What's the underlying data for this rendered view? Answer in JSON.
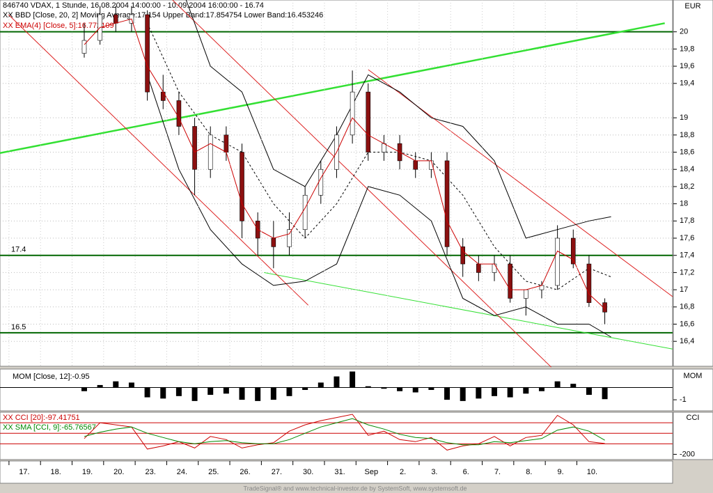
{
  "chart_data": [
    {
      "type": "candlestick",
      "title": "846740 VDAX, 1 Stunde, 16.08.2004 14:00:00 - 10.09.2004 16:00:00 - 16.74",
      "axis_label": "EUR",
      "xlim": [
        -0.77,
        20.55
      ],
      "ylim": [
        16.11,
        20.37
      ],
      "yticks": [
        20,
        {
          "value": 19.8,
          "label": "19,8"
        },
        {
          "value": 19.6,
          "label": "19,6"
        },
        {
          "value": 19.4,
          "label": "19,4"
        },
        19,
        {
          "value": 18.8,
          "label": "18,8"
        },
        {
          "value": 18.6,
          "label": "18,6"
        },
        {
          "value": 18.4,
          "label": "18,4"
        },
        {
          "value": 18.2,
          "label": "18,2"
        },
        18,
        {
          "value": 17.8,
          "label": "17,8"
        },
        {
          "value": 17.6,
          "label": "17,6"
        },
        {
          "value": 17.4,
          "label": "17,4"
        },
        {
          "value": 17.2,
          "label": "17,2"
        },
        17,
        {
          "value": 16.8,
          "label": "16,8"
        },
        {
          "value": 16.6,
          "label": "16,6"
        },
        {
          "value": 16.4,
          "label": "16,4"
        }
      ],
      "grid": true,
      "up_color": "#ffffff",
      "down_color": "#8b1010",
      "x": [
        1.9,
        2.4,
        2.9,
        3.4,
        3.9,
        4.4,
        4.9,
        5.4,
        5.9,
        6.4,
        6.9,
        7.4,
        7.9,
        8.4,
        8.9,
        9.4,
        9.9,
        10.4,
        10.9,
        11.4,
        11.9,
        12.4,
        12.9,
        13.4,
        13.9,
        14.4,
        14.9,
        15.4,
        15.9,
        16.4,
        16.9,
        17.4,
        17.9,
        18.4
      ],
      "open": [
        19.75,
        19.9,
        20.2,
        20.1,
        20.2,
        19.3,
        19.2,
        18.9,
        18.4,
        18.8,
        18.6,
        17.8,
        17.6,
        17.5,
        17.7,
        18.1,
        18.4,
        18.8,
        19.3,
        18.6,
        18.7,
        18.5,
        18.4,
        18.5,
        17.5,
        17.3,
        17.2,
        17.3,
        16.9,
        17.0,
        17.05,
        17.6,
        17.3,
        16.85
      ],
      "high": [
        20.1,
        20.3,
        20.3,
        20.3,
        20.25,
        19.5,
        19.3,
        19.0,
        18.9,
        18.9,
        18.7,
        17.9,
        17.8,
        17.9,
        18.2,
        18.5,
        18.9,
        19.55,
        19.4,
        18.8,
        18.8,
        18.6,
        18.6,
        18.6,
        17.6,
        17.4,
        17.4,
        17.4,
        17.0,
        17.1,
        17.75,
        17.7,
        17.4,
        16.9
      ],
      "low": [
        19.7,
        19.85,
        20.0,
        20.0,
        19.2,
        19.1,
        18.8,
        18.1,
        18.3,
        18.5,
        17.6,
        17.4,
        17.25,
        17.4,
        17.6,
        18.0,
        18.3,
        18.7,
        18.5,
        18.5,
        18.4,
        18.3,
        18.3,
        17.4,
        17.15,
        17.1,
        17.1,
        16.85,
        16.7,
        16.9,
        17.0,
        17.25,
        16.8,
        16.6
      ],
      "close": [
        19.9,
        20.2,
        20.1,
        20.2,
        19.3,
        19.2,
        18.9,
        18.4,
        18.8,
        18.6,
        17.8,
        17.6,
        17.5,
        17.7,
        18.1,
        18.4,
        18.8,
        19.3,
        18.6,
        18.7,
        18.5,
        18.4,
        18.5,
        17.5,
        17.3,
        17.2,
        17.3,
        16.9,
        17.0,
        17.05,
        17.6,
        17.3,
        16.85,
        16.74
      ],
      "bands": {
        "name": "XX BBD [Close, 20, 2] Moving Average:17.154 Upper Band:17.854754 Lower Band:16.453246",
        "color": "#000000",
        "x": [
          3.9,
          4.9,
          5.9,
          6.9,
          7.9,
          8.9,
          9.9,
          10.9,
          11.9,
          12.9,
          13.9,
          14.9,
          15.9,
          16.9,
          17.9,
          18.6
        ],
        "middle": [
          20.1,
          19.3,
          18.8,
          18.6,
          18.0,
          17.6,
          18.0,
          18.6,
          18.6,
          18.5,
          18.1,
          17.5,
          17.1,
          17.0,
          17.25,
          17.15
        ],
        "upper": [
          20.5,
          20.6,
          19.6,
          19.3,
          18.4,
          18.2,
          18.8,
          19.5,
          19.3,
          19.0,
          18.9,
          18.5,
          17.6,
          17.7,
          17.8,
          17.85
        ],
        "lower": [
          19.5,
          18.4,
          17.7,
          17.3,
          17.05,
          17.1,
          17.3,
          18.2,
          18.1,
          17.8,
          16.9,
          16.7,
          16.8,
          16.6,
          16.6,
          16.45
        ]
      },
      "ema": {
        "name": "XX EMA(4) [Close, 5]:16.772109",
        "color": "#cc0000",
        "values": [
          19.85,
          20.05,
          20.1,
          20.15,
          19.6,
          19.3,
          19.0,
          18.6,
          18.7,
          18.6,
          18.0,
          17.7,
          17.6,
          17.65,
          17.95,
          18.3,
          18.6,
          19.0,
          18.8,
          18.7,
          18.6,
          18.5,
          18.5,
          17.8,
          17.45,
          17.3,
          17.3,
          17.0,
          17.0,
          17.05,
          17.45,
          17.35,
          16.95,
          16.78
        ]
      },
      "trend_lines": [
        {
          "color": "#33e033",
          "x": [
            -0.77,
            20.3
          ],
          "y": [
            18.59,
            20.1
          ]
        },
        {
          "color": "#33e033",
          "x": [
            7.6,
            20.55
          ],
          "y": [
            17.2,
            16.31
          ]
        },
        {
          "color": "#dd2020",
          "x": [
            -0.5,
            9.0
          ],
          "y": [
            20.2,
            16.82
          ]
        },
        {
          "color": "#dd2020",
          "x": [
            4.7,
            16.7
          ],
          "y": [
            20.37,
            16.1
          ]
        },
        {
          "color": "#dd2020",
          "x": [
            10.9,
            20.55
          ],
          "y": [
            19.56,
            16.92
          ]
        }
      ],
      "levels": [
        {
          "value": 20
        },
        {
          "value": 17.4,
          "label": "17.4"
        },
        {
          "value": 16.5,
          "label": "16.5"
        }
      ],
      "level_color": "#006600"
    },
    {
      "type": "bar",
      "title": "MOM [Close, 12]:-0.95",
      "axis_label": "MOM",
      "color": "#000000",
      "xlim": [
        -0.77,
        20.55
      ],
      "ylim": [
        -1.9,
        1.5
      ],
      "yticks": [
        -1
      ],
      "x": [
        1.9,
        2.4,
        2.9,
        3.4,
        3.9,
        4.4,
        4.9,
        5.4,
        5.9,
        6.4,
        6.9,
        7.4,
        7.9,
        8.4,
        8.9,
        9.4,
        9.9,
        10.4,
        10.9,
        11.4,
        11.9,
        12.4,
        12.9,
        13.4,
        13.9,
        14.4,
        14.9,
        15.4,
        15.9,
        16.4,
        16.9,
        17.4,
        17.9,
        18.4
      ],
      "values": [
        -0.3,
        0.2,
        0.5,
        0.4,
        -0.8,
        -0.9,
        -0.7,
        -1.1,
        -0.6,
        -0.5,
        -1.0,
        -1.1,
        -1.0,
        -0.7,
        -0.2,
        0.4,
        0.9,
        1.3,
        0.1,
        -0.1,
        -0.3,
        -0.4,
        -0.2,
        -1.0,
        -1.1,
        -0.9,
        -0.7,
        -0.8,
        -0.5,
        -0.3,
        0.5,
        0.3,
        -0.6,
        -0.95
      ]
    },
    {
      "type": "line",
      "axis_label": "CCI",
      "xlim": [
        -0.77,
        20.55
      ],
      "ylim": [
        -250,
        200
      ],
      "yticks": [
        -200
      ],
      "levels": [
        100,
        0,
        -100
      ],
      "level_color": "#cc0000",
      "x": [
        1.9,
        2.4,
        2.9,
        3.4,
        3.9,
        4.4,
        4.9,
        5.4,
        5.9,
        6.4,
        6.9,
        7.4,
        7.9,
        8.4,
        8.9,
        9.4,
        9.9,
        10.4,
        10.9,
        11.4,
        11.9,
        12.4,
        12.9,
        13.4,
        13.9,
        14.4,
        14.9,
        15.4,
        15.9,
        16.4,
        16.9,
        17.4,
        17.9,
        18.4
      ],
      "series": [
        {
          "name": "XX CCI [20]:-97.41751",
          "color": "#cc0000",
          "values": [
            -50,
            100,
            80,
            60,
            -150,
            -120,
            -80,
            -140,
            -30,
            -60,
            -140,
            -110,
            -90,
            20,
            80,
            120,
            150,
            180,
            -20,
            20,
            -60,
            -80,
            -40,
            -160,
            -120,
            -100,
            -30,
            -120,
            -40,
            -20,
            170,
            80,
            -80,
            -97
          ]
        },
        {
          "name": "XX SMA [CCI, 9]:-65.76567",
          "color": "#008800",
          "values": [
            -30,
            10,
            40,
            60,
            0,
            -40,
            -80,
            -100,
            -80,
            -70,
            -90,
            -100,
            -100,
            -60,
            0,
            60,
            100,
            140,
            80,
            40,
            -10,
            -40,
            -50,
            -90,
            -110,
            -110,
            -80,
            -90,
            -70,
            -50,
            30,
            60,
            20,
            -66
          ]
        }
      ],
      "xticks": [
        {
          "value": 0,
          "label": "17."
        },
        {
          "value": 1,
          "label": "18."
        },
        {
          "value": 2,
          "label": "19."
        },
        {
          "value": 3,
          "label": "20."
        },
        {
          "value": 4,
          "label": "23."
        },
        {
          "value": 5,
          "label": "24."
        },
        {
          "value": 6,
          "label": "25."
        },
        {
          "value": 7,
          "label": "26."
        },
        {
          "value": 8,
          "label": "27."
        },
        {
          "value": 9,
          "label": "30."
        },
        {
          "value": 10,
          "label": "31."
        },
        {
          "value": 11,
          "label": "Sep"
        },
        {
          "value": 12,
          "label": "2."
        },
        {
          "value": 13,
          "label": "3."
        },
        {
          "value": 14,
          "label": "6."
        },
        {
          "value": 15,
          "label": "7."
        },
        {
          "value": 16,
          "label": "8."
        },
        {
          "value": 17,
          "label": "9."
        },
        {
          "value": 18,
          "label": "10."
        }
      ]
    }
  ],
  "footer": "TradeSignal® and www.technical-investor.de by SystemSoft, www.systemsoft.de"
}
